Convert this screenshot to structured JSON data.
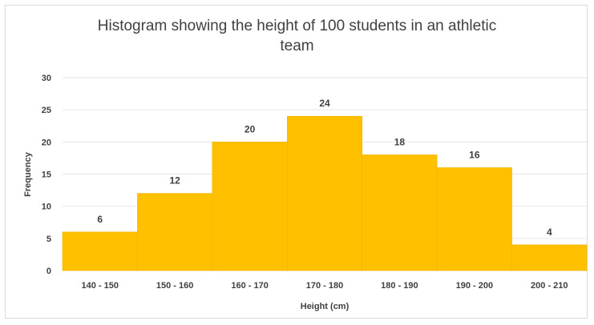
{
  "chart_data": {
    "type": "bar",
    "title_line1": "Histogram showing the height of 100 students in an athletic",
    "title_line2": "team",
    "xlabel": "Height (cm)",
    "ylabel": "Frequency",
    "categories": [
      "140 - 150",
      "150 - 160",
      "160 - 170",
      "170 - 180",
      "180 - 190",
      "190 - 200",
      "200 - 210"
    ],
    "values": [
      6,
      12,
      20,
      24,
      18,
      16,
      4
    ],
    "ylim": [
      0,
      30
    ],
    "yticks": [
      0,
      5,
      10,
      15,
      20,
      25,
      30
    ],
    "grid": true,
    "bar_gap": 0,
    "bar_color": "#ffc000",
    "bar_edge_color": "#f2b400"
  }
}
